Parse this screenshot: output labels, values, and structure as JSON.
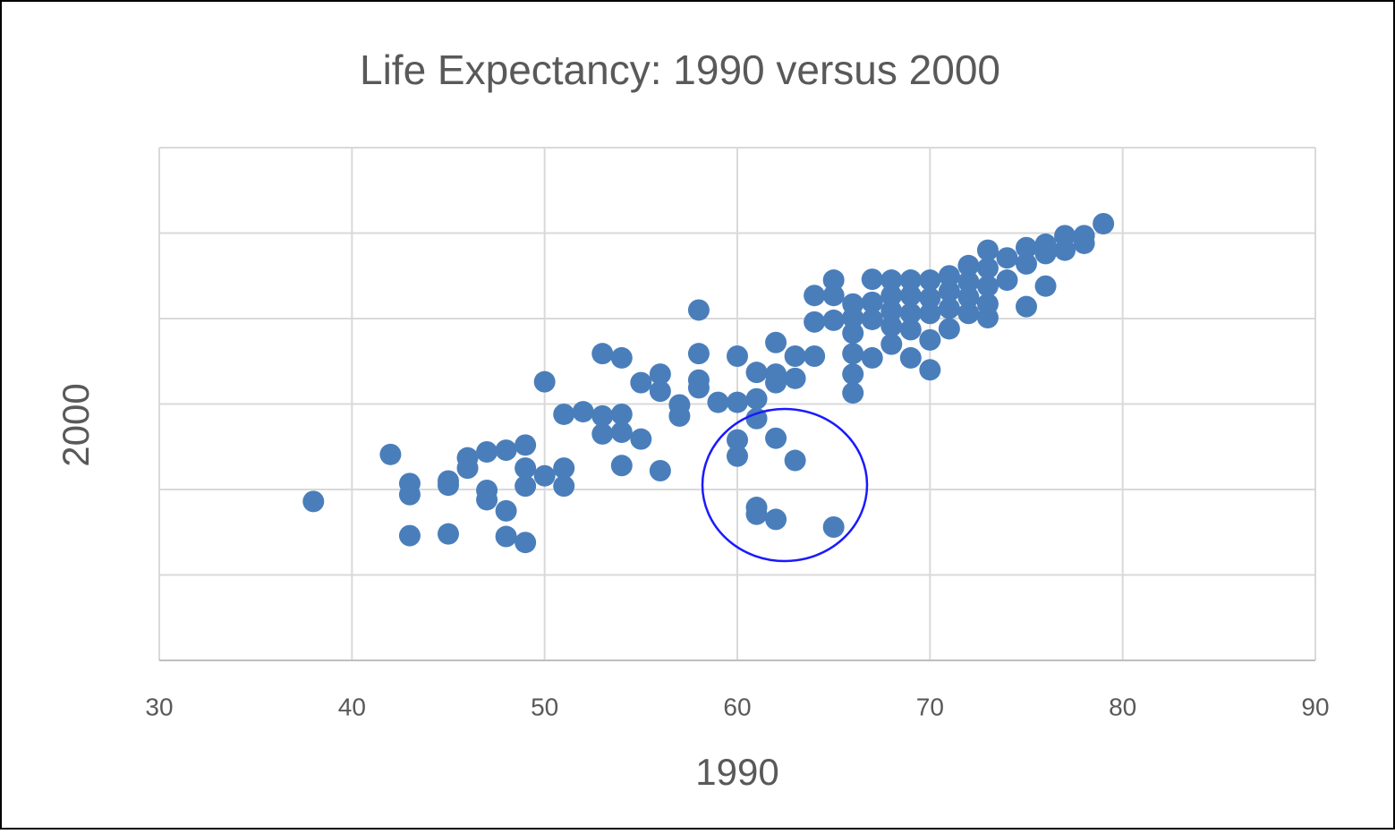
{
  "chart_data": {
    "type": "scatter",
    "title": "Life Expectancy: 1990 versus 2000",
    "xlabel": "1990",
    "ylabel": "2000",
    "color": "#4a7ebb",
    "grid": true,
    "xlim": [
      30,
      90
    ],
    "xticks": [
      30,
      40,
      50,
      60,
      70,
      80,
      90
    ],
    "ylim": [
      30,
      90
    ],
    "yticks": [
      30,
      40,
      50,
      60,
      70,
      80,
      90
    ],
    "x": [
      38,
      42,
      43,
      43,
      43,
      45,
      45,
      45,
      46,
      46,
      47,
      47,
      47,
      48,
      48,
      48,
      49,
      49,
      49,
      49,
      50,
      50,
      51,
      51,
      51,
      52,
      53,
      53,
      53,
      54,
      54,
      54,
      54,
      55,
      55,
      56,
      56,
      56,
      57,
      57,
      58,
      58,
      58,
      58,
      59,
      60,
      60,
      60,
      60,
      61,
      61,
      61,
      61,
      61,
      62,
      62,
      62,
      62,
      62,
      63,
      63,
      63,
      64,
      64,
      64,
      65,
      65,
      65,
      65,
      66,
      66,
      66,
      66,
      66,
      66,
      67,
      67,
      67,
      67,
      68,
      68,
      68,
      68,
      68,
      69,
      69,
      69,
      69,
      69,
      70,
      70,
      70,
      70,
      70,
      71,
      71,
      71,
      71,
      72,
      72,
      72,
      72,
      73,
      73,
      73,
      73,
      73,
      74,
      74,
      75,
      75,
      75,
      76,
      76,
      76,
      77,
      77,
      78,
      78,
      79
    ],
    "values": [
      48.6,
      54.1,
      50.7,
      49.4,
      44.6,
      51.0,
      50.5,
      44.8,
      53.7,
      52.5,
      54.4,
      49.9,
      48.8,
      54.6,
      47.5,
      44.5,
      55.2,
      52.5,
      50.4,
      43.8,
      62.6,
      51.6,
      58.8,
      52.5,
      50.4,
      59.1,
      65.9,
      58.6,
      56.5,
      65.4,
      58.8,
      56.7,
      52.8,
      62.5,
      55.9,
      63.5,
      61.5,
      52.2,
      59.9,
      58.6,
      71.0,
      65.9,
      62.8,
      61.9,
      60.2,
      65.6,
      60.2,
      55.8,
      53.9,
      63.7,
      60.6,
      58.3,
      47.9,
      47.1,
      67.2,
      63.5,
      62.5,
      56.0,
      46.5,
      65.6,
      63.0,
      53.4,
      72.7,
      69.6,
      65.6,
      74.5,
      72.7,
      69.8,
      45.6,
      71.7,
      70.1,
      68.3,
      65.9,
      63.5,
      61.3,
      74.6,
      71.9,
      69.9,
      65.4,
      74.5,
      72.7,
      70.9,
      69.1,
      67.0,
      74.5,
      72.7,
      70.6,
      68.7,
      65.4,
      74.5,
      72.4,
      70.6,
      67.5,
      64.0,
      75.0,
      73.2,
      71.2,
      68.8,
      76.2,
      74.3,
      72.5,
      70.6,
      78.0,
      75.9,
      73.8,
      71.7,
      70.1,
      77.1,
      74.5,
      78.3,
      76.4,
      71.4,
      78.7,
      77.6,
      73.8,
      79.7,
      78.0,
      79.7,
      78.8,
      81.1
    ]
  }
}
